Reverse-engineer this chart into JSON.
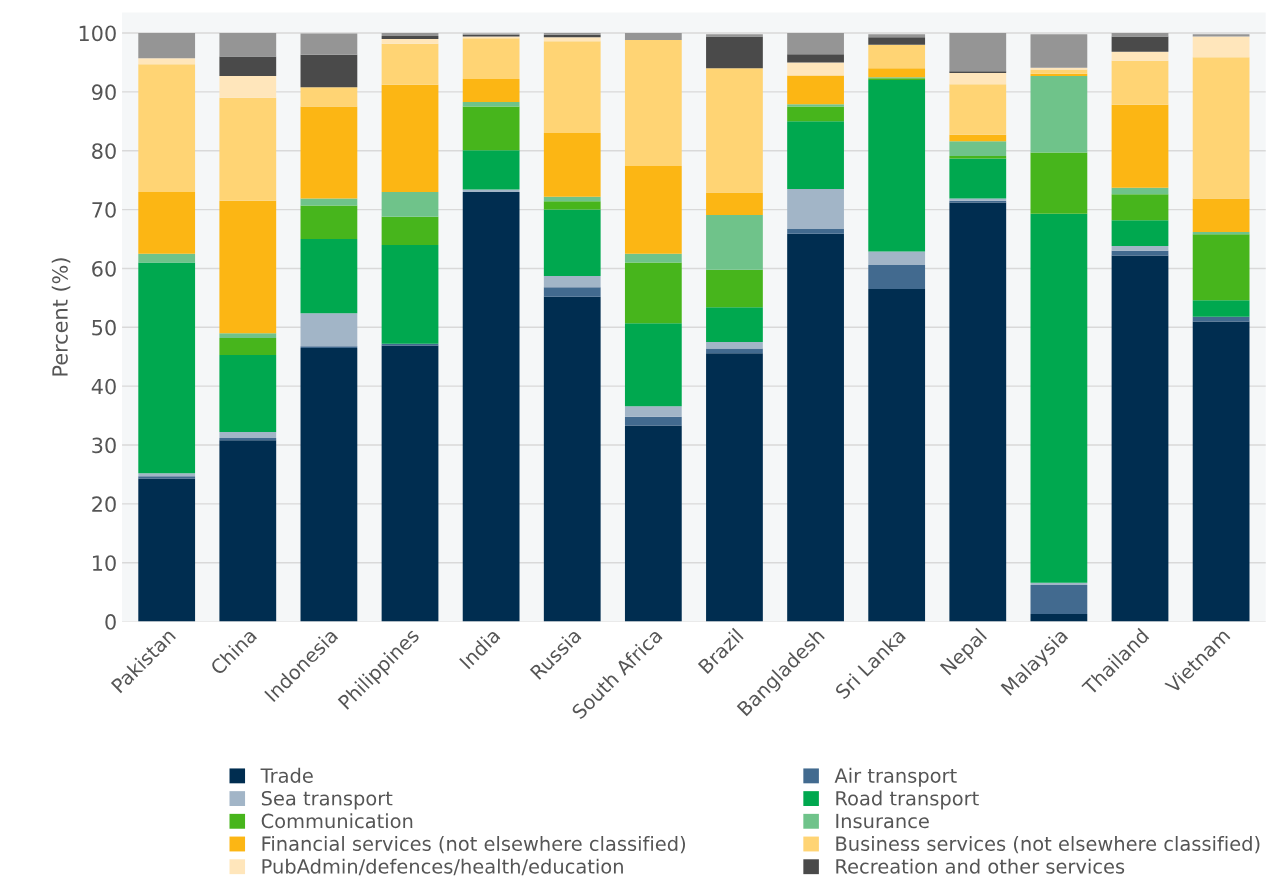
{
  "chart_data": {
    "type": "bar",
    "stacked": true,
    "ylabel": "Percent (%)",
    "legend": "bottom",
    "grid": "y",
    "categories": [
      "Pakistan",
      "China",
      "Indonesia",
      "Philippines",
      "India",
      "Russia",
      "South Africa",
      "Brazil",
      "Bangladesh",
      "Sri Lanka",
      "Nepal",
      "Malaysia",
      "Thailand",
      "Vietnam"
    ],
    "ylim": [
      0,
      103.5
    ],
    "yticks": [
      0,
      10,
      20,
      30,
      40,
      50,
      60,
      70,
      80,
      90,
      100
    ],
    "series": [
      {
        "name": "Trade",
        "color": "#002d50",
        "values": [
          24.3,
          30.8,
          46.5,
          46.9,
          73.0,
          55.2,
          33.3,
          45.6,
          65.9,
          56.5,
          71.2,
          1.3,
          62.2,
          51.0
        ]
      },
      {
        "name": "Air transport",
        "color": "#426a8f",
        "values": [
          0.4,
          0.4,
          0.3,
          0.3,
          null,
          1.6,
          1.5,
          0.8,
          0.8,
          4.1,
          0.3,
          4.9,
          0.8,
          0.8
        ]
      },
      {
        "name": "Sea transport",
        "color": "#a2b5c7",
        "values": [
          0.5,
          1.0,
          5.6,
          0,
          0.4,
          1.9,
          1.8,
          1.1,
          6.8,
          2.3,
          0.4,
          0.4,
          0.8,
          0
        ]
      },
      {
        "name": "Road transport",
        "color": "#00a84f",
        "values": [
          35.8,
          13.1,
          12.6,
          16.8,
          6.7,
          11.3,
          14.1,
          5.9,
          11.5,
          29.1,
          6.8,
          62.7,
          4.4,
          2.8
        ]
      },
      {
        "name": "Communication",
        "color": "#47b51c",
        "values": [
          0,
          2.9,
          5.7,
          4.8,
          7.4,
          1.4,
          10.3,
          6.4,
          2.5,
          0.3,
          0.4,
          10.4,
          4.4,
          11.2
        ]
      },
      {
        "name": "Insurance",
        "color": "#6fc38a",
        "values": [
          1.5,
          0.8,
          1.2,
          4.2,
          0.8,
          0.8,
          1.5,
          9.3,
          0.4,
          0.2,
          2.5,
          13.0,
          1.1,
          0.4
        ]
      },
      {
        "name": "Financial services (not elsewhere classified)",
        "color": "#fcb614",
        "values": [
          10.5,
          22.5,
          15.6,
          18.2,
          3.9,
          10.8,
          14.9,
          3.8,
          4.9,
          1.5,
          1.1,
          0.4,
          14.1,
          5.7
        ]
      },
      {
        "name": "Business services (not elsewhere classified)",
        "color": "#ffd474",
        "values": [
          21.7,
          17.5,
          3.3,
          7.0,
          6.9,
          15.6,
          21.4,
          21.1,
          0,
          4.0,
          8.6,
          0.7,
          7.5,
          24.0
        ]
      },
      {
        "name": "PubAdmin/defences/health/education",
        "color": "#ffe6bb",
        "values": [
          1.0,
          3.7,
          null,
          0.8,
          0.3,
          0.7,
          0,
          null,
          2.2,
          null,
          1.9,
          0.3,
          1.5,
          3.5
        ]
      },
      {
        "name": "Recreation and other services",
        "color": "#4a4a4a",
        "values": [
          0,
          3.3,
          5.5,
          0.5,
          0.3,
          0.4,
          0,
          5.4,
          1.4,
          1.3,
          0.3,
          null,
          2.6,
          null
        ]
      },
      {
        "color": "#959595",
        "values": [
          4.3,
          4.0,
          3.6,
          0.5,
          0.2,
          0.3,
          1.2,
          0.4,
          3.6,
          0.5,
          6.5,
          5.7,
          0.6,
          0.4
        ]
      }
    ]
  }
}
